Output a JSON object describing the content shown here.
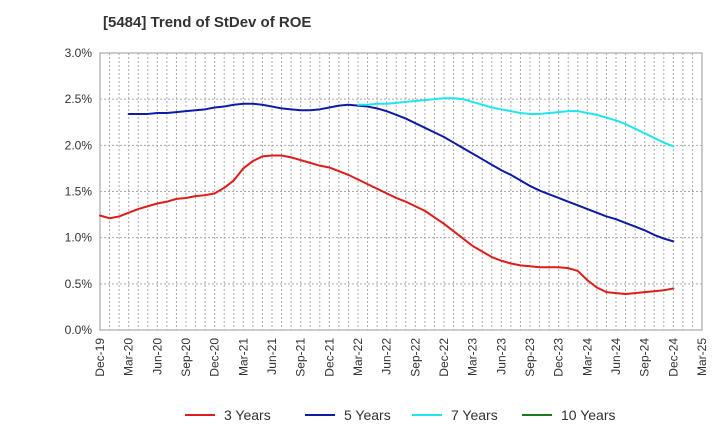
{
  "chart_data": {
    "type": "line",
    "title": "[5484]  Trend of StDev of ROE",
    "xlabel": "",
    "ylabel": "",
    "x_ticks": [
      "Dec-19",
      "Mar-20",
      "Jun-20",
      "Sep-20",
      "Dec-20",
      "Mar-21",
      "Jun-21",
      "Sep-21",
      "Dec-21",
      "Mar-22",
      "Jun-22",
      "Sep-22",
      "Dec-22",
      "Mar-23",
      "Jun-23",
      "Sep-23",
      "Dec-23",
      "Mar-24",
      "Jun-24",
      "Sep-24",
      "Dec-24",
      "Mar-25"
    ],
    "y_ticks": [
      "0.0%",
      "0.5%",
      "1.0%",
      "1.5%",
      "2.0%",
      "2.5%",
      "3.0%"
    ],
    "ylim": [
      0,
      3.0
    ],
    "y_unit": "%",
    "grid": true,
    "legend_position": "bottom",
    "series": [
      {
        "name": "3 Years",
        "color": "#dd1c1c",
        "points": [
          [
            "Dec-19",
            1.24
          ],
          [
            "Jan-20",
            1.21
          ],
          [
            "Feb-20",
            1.23
          ],
          [
            "Mar-20",
            1.27
          ],
          [
            "Apr-20",
            1.31
          ],
          [
            "May-20",
            1.34
          ],
          [
            "Jun-20",
            1.37
          ],
          [
            "Jul-20",
            1.39
          ],
          [
            "Aug-20",
            1.42
          ],
          [
            "Sep-20",
            1.43
          ],
          [
            "Oct-20",
            1.45
          ],
          [
            "Nov-20",
            1.46
          ],
          [
            "Dec-20",
            1.48
          ],
          [
            "Jan-21",
            1.54
          ],
          [
            "Feb-21",
            1.62
          ],
          [
            "Mar-21",
            1.75
          ],
          [
            "Apr-21",
            1.83
          ],
          [
            "May-21",
            1.88
          ],
          [
            "Jun-21",
            1.89
          ],
          [
            "Jul-21",
            1.89
          ],
          [
            "Aug-21",
            1.87
          ],
          [
            "Sep-21",
            1.84
          ],
          [
            "Oct-21",
            1.81
          ],
          [
            "Nov-21",
            1.78
          ],
          [
            "Dec-21",
            1.76
          ],
          [
            "Jan-22",
            1.72
          ],
          [
            "Feb-22",
            1.68
          ],
          [
            "Mar-22",
            1.63
          ],
          [
            "Apr-22",
            1.58
          ],
          [
            "May-22",
            1.53
          ],
          [
            "Jun-22",
            1.48
          ],
          [
            "Jul-22",
            1.43
          ],
          [
            "Aug-22",
            1.39
          ],
          [
            "Sep-22",
            1.34
          ],
          [
            "Oct-22",
            1.29
          ],
          [
            "Nov-22",
            1.22
          ],
          [
            "Dec-22",
            1.15
          ],
          [
            "Jan-23",
            1.07
          ],
          [
            "Feb-23",
            0.99
          ],
          [
            "Mar-23",
            0.91
          ],
          [
            "Apr-23",
            0.85
          ],
          [
            "May-23",
            0.79
          ],
          [
            "Jun-23",
            0.75
          ],
          [
            "Jul-23",
            0.72
          ],
          [
            "Aug-23",
            0.7
          ],
          [
            "Sep-23",
            0.69
          ],
          [
            "Oct-23",
            0.68
          ],
          [
            "Nov-23",
            0.68
          ],
          [
            "Dec-23",
            0.68
          ],
          [
            "Jan-24",
            0.67
          ],
          [
            "Feb-24",
            0.64
          ],
          [
            "Mar-24",
            0.54
          ],
          [
            "Apr-24",
            0.46
          ],
          [
            "May-24",
            0.41
          ],
          [
            "Jun-24",
            0.4
          ],
          [
            "Jul-24",
            0.39
          ],
          [
            "Aug-24",
            0.4
          ],
          [
            "Sep-24",
            0.41
          ],
          [
            "Oct-24",
            0.42
          ],
          [
            "Nov-24",
            0.43
          ],
          [
            "Dec-24",
            0.45
          ]
        ]
      },
      {
        "name": "5 Years",
        "color": "#0f1aa6",
        "points": [
          [
            "Mar-20",
            2.34
          ],
          [
            "Apr-20",
            2.34
          ],
          [
            "May-20",
            2.34
          ],
          [
            "Jun-20",
            2.35
          ],
          [
            "Jul-20",
            2.35
          ],
          [
            "Aug-20",
            2.36
          ],
          [
            "Sep-20",
            2.37
          ],
          [
            "Oct-20",
            2.38
          ],
          [
            "Nov-20",
            2.39
          ],
          [
            "Dec-20",
            2.41
          ],
          [
            "Jan-21",
            2.42
          ],
          [
            "Feb-21",
            2.44
          ],
          [
            "Mar-21",
            2.45
          ],
          [
            "Apr-21",
            2.45
          ],
          [
            "May-21",
            2.44
          ],
          [
            "Jun-21",
            2.42
          ],
          [
            "Jul-21",
            2.4
          ],
          [
            "Aug-21",
            2.39
          ],
          [
            "Sep-21",
            2.38
          ],
          [
            "Oct-21",
            2.38
          ],
          [
            "Nov-21",
            2.39
          ],
          [
            "Dec-21",
            2.41
          ],
          [
            "Jan-22",
            2.43
          ],
          [
            "Feb-22",
            2.44
          ],
          [
            "Mar-22",
            2.43
          ],
          [
            "Apr-22",
            2.42
          ],
          [
            "May-22",
            2.4
          ],
          [
            "Jun-22",
            2.37
          ],
          [
            "Jul-22",
            2.33
          ],
          [
            "Aug-22",
            2.29
          ],
          [
            "Sep-22",
            2.24
          ],
          [
            "Oct-22",
            2.19
          ],
          [
            "Nov-22",
            2.14
          ],
          [
            "Dec-22",
            2.09
          ],
          [
            "Jan-23",
            2.03
          ],
          [
            "Feb-23",
            1.97
          ],
          [
            "Mar-23",
            1.91
          ],
          [
            "Apr-23",
            1.85
          ],
          [
            "May-23",
            1.79
          ],
          [
            "Jun-23",
            1.73
          ],
          [
            "Jul-23",
            1.68
          ],
          [
            "Aug-23",
            1.62
          ],
          [
            "Sep-23",
            1.56
          ],
          [
            "Oct-23",
            1.51
          ],
          [
            "Nov-23",
            1.47
          ],
          [
            "Dec-23",
            1.43
          ],
          [
            "Jan-24",
            1.39
          ],
          [
            "Feb-24",
            1.35
          ],
          [
            "Mar-24",
            1.31
          ],
          [
            "Apr-24",
            1.27
          ],
          [
            "May-24",
            1.23
          ],
          [
            "Jun-24",
            1.2
          ],
          [
            "Jul-24",
            1.16
          ],
          [
            "Aug-24",
            1.12
          ],
          [
            "Sep-24",
            1.08
          ],
          [
            "Oct-24",
            1.03
          ],
          [
            "Nov-24",
            0.99
          ],
          [
            "Dec-24",
            0.96
          ]
        ]
      },
      {
        "name": "7 Years",
        "color": "#1ee6ee",
        "points": [
          [
            "Mar-22",
            2.44
          ],
          [
            "Apr-22",
            2.44
          ],
          [
            "May-22",
            2.45
          ],
          [
            "Jun-22",
            2.45
          ],
          [
            "Jul-22",
            2.46
          ],
          [
            "Aug-22",
            2.47
          ],
          [
            "Sep-22",
            2.48
          ],
          [
            "Oct-22",
            2.49
          ],
          [
            "Nov-22",
            2.5
          ],
          [
            "Dec-22",
            2.51
          ],
          [
            "Jan-23",
            2.51
          ],
          [
            "Feb-23",
            2.5
          ],
          [
            "Mar-23",
            2.47
          ],
          [
            "Apr-23",
            2.44
          ],
          [
            "May-23",
            2.41
          ],
          [
            "Jun-23",
            2.39
          ],
          [
            "Jul-23",
            2.37
          ],
          [
            "Aug-23",
            2.35
          ],
          [
            "Sep-23",
            2.34
          ],
          [
            "Oct-23",
            2.34
          ],
          [
            "Nov-23",
            2.35
          ],
          [
            "Dec-23",
            2.36
          ],
          [
            "Jan-24",
            2.37
          ],
          [
            "Feb-24",
            2.37
          ],
          [
            "Mar-24",
            2.35
          ],
          [
            "Apr-24",
            2.33
          ],
          [
            "May-24",
            2.3
          ],
          [
            "Jun-24",
            2.27
          ],
          [
            "Jul-24",
            2.23
          ],
          [
            "Aug-24",
            2.18
          ],
          [
            "Sep-24",
            2.13
          ],
          [
            "Oct-24",
            2.08
          ],
          [
            "Nov-24",
            2.03
          ],
          [
            "Dec-24",
            1.99
          ]
        ]
      },
      {
        "name": "10 Years",
        "color": "#1c7a1c",
        "points": []
      }
    ]
  }
}
